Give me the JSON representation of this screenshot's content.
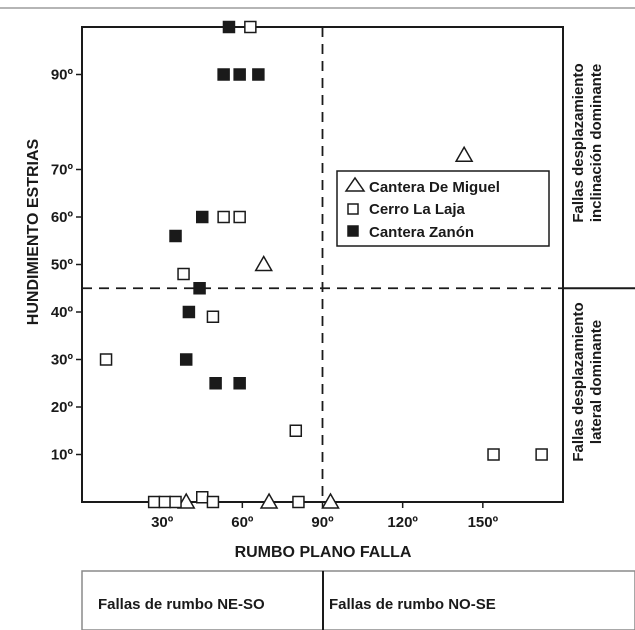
{
  "chart_data": {
    "type": "scatter",
    "xlabel": "RUMBO PLANO FALLA",
    "ylabel": "HUNDIMIENTO ESTRIAS",
    "xlim": [
      0,
      180
    ],
    "ylim": [
      0,
      100
    ],
    "x_ticks": [
      {
        "value": 30,
        "label": "30º"
      },
      {
        "value": 60,
        "label": "60º"
      },
      {
        "value": 90,
        "label": "90º"
      },
      {
        "value": 120,
        "label": "120º"
      },
      {
        "value": 150,
        "label": "150º"
      }
    ],
    "y_ticks": [
      {
        "value": 10,
        "label": "10º"
      },
      {
        "value": 20,
        "label": "20º"
      },
      {
        "value": 30,
        "label": "30º"
      },
      {
        "value": 40,
        "label": "40º"
      },
      {
        "value": 50,
        "label": "50º"
      },
      {
        "value": 60,
        "label": "60º"
      },
      {
        "value": 70,
        "label": "70º"
      },
      {
        "value": 90,
        "label": "90º"
      }
    ],
    "divider_x": 90,
    "divider_y": 45,
    "legend": {
      "position": "right, above horizontal divider"
    },
    "series": [
      {
        "name": "Cantera De Miguel",
        "marker": "triangle-open",
        "points": [
          [
            143,
            73
          ],
          [
            68,
            50
          ],
          [
            39,
            0
          ],
          [
            70,
            0
          ],
          [
            93,
            0
          ]
        ]
      },
      {
        "name": "Cerro La Laja",
        "marker": "square-open",
        "points": [
          [
            63,
            100
          ],
          [
            53,
            60
          ],
          [
            59,
            60
          ],
          [
            38,
            48
          ],
          [
            49,
            39
          ],
          [
            9,
            30
          ],
          [
            80,
            15
          ],
          [
            154,
            10
          ],
          [
            172,
            10
          ],
          [
            27,
            0
          ],
          [
            31,
            0
          ],
          [
            35,
            0
          ],
          [
            45,
            1
          ],
          [
            49,
            0
          ],
          [
            81,
            0
          ]
        ]
      },
      {
        "name": "Cantera Zanón",
        "marker": "square-filled",
        "points": [
          [
            55,
            100
          ],
          [
            53,
            90
          ],
          [
            59,
            90
          ],
          [
            66,
            90
          ],
          [
            45,
            60
          ],
          [
            35,
            56
          ],
          [
            44,
            45
          ],
          [
            40,
            40
          ],
          [
            39,
            30
          ],
          [
            50,
            25
          ],
          [
            59,
            25
          ]
        ]
      }
    ],
    "quadrant_labels": {
      "upper": "Fallas desplazamiento inclinación dominante",
      "upper_lines": [
        "Fallas desplazamiento",
        "inclinación dominante"
      ],
      "lower": "Fallas desplazamiento lateral dominante",
      "lower_lines": [
        "Fallas desplazamiento",
        "lateral dominante"
      ]
    },
    "bottom_labels": {
      "left": "Fallas de rumbo NE-SO",
      "right": "Fallas de rumbo NO-SE"
    }
  }
}
